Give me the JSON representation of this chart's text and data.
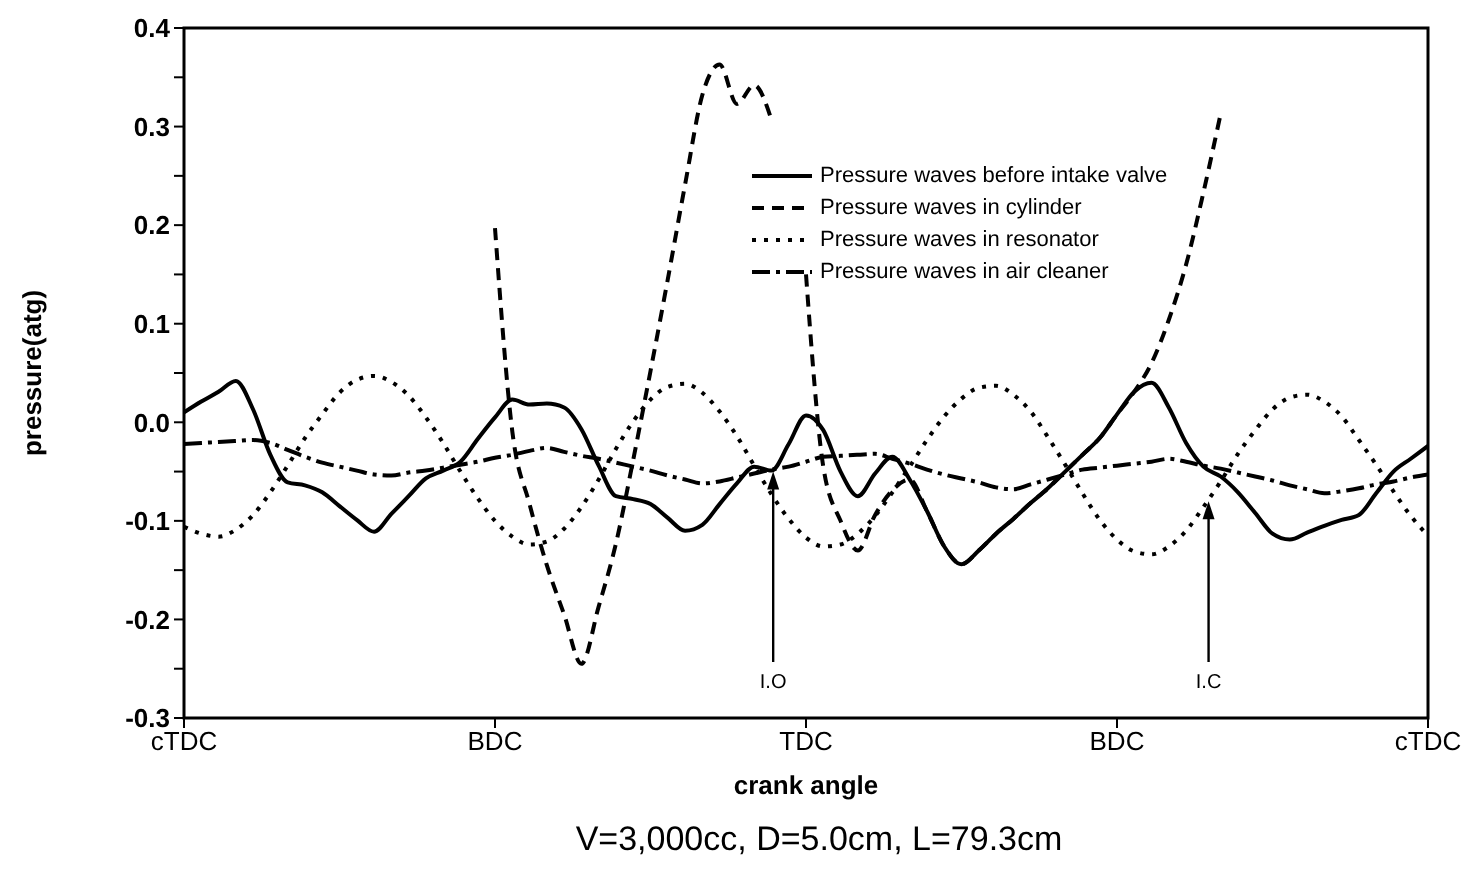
{
  "chart_data": {
    "type": "line",
    "xlabel": "crank angle",
    "ylabel": "pressure(atg)",
    "categories": [
      "cTDC",
      null,
      null,
      null,
      null,
      null,
      null,
      null,
      null,
      null,
      null,
      null,
      null,
      null,
      null,
      null,
      null,
      null,
      "BDC",
      null,
      null,
      null,
      null,
      null,
      null,
      null,
      null,
      null,
      null,
      null,
      null,
      null,
      null,
      null,
      null,
      null,
      "TDC",
      null,
      null,
      null,
      null,
      null,
      null,
      null,
      null,
      null,
      null,
      null,
      null,
      null,
      null,
      null,
      null,
      null,
      "BDC",
      null,
      null,
      null,
      null,
      null,
      null,
      null,
      null,
      null,
      null,
      null,
      null,
      null,
      null,
      null,
      null,
      null,
      "cTDC"
    ],
    "ylim": [
      -0.3,
      0.4
    ],
    "yticks": [
      -0.3,
      {
        "value": -0.25,
        "label": null
      },
      -0.2,
      {
        "value": -0.15,
        "label": null
      },
      -0.1,
      {
        "value": -0.05,
        "label": null
      },
      {
        "value": 0,
        "label": "0.0"
      },
      {
        "value": 0.05,
        "label": null
      },
      0.1,
      {
        "value": 0.15,
        "label": null
      },
      0.2,
      {
        "value": 0.25,
        "label": null
      },
      0.3,
      {
        "value": 0.35,
        "label": null
      },
      0.4
    ],
    "grid": false,
    "legend": "top right",
    "series": [
      {
        "name": "Pressure waves before intake valve",
        "color": "#000000",
        "line_style": "solid",
        "values": [
          0.01,
          0.021,
          0.031,
          0.042,
          0.013,
          -0.033,
          -0.061,
          -0.064,
          -0.071,
          -0.085,
          -0.099,
          -0.111,
          -0.093,
          -0.075,
          -0.057,
          -0.049,
          -0.04,
          -0.017,
          0.005,
          0.023,
          0.018,
          0.019,
          0.015,
          -0.007,
          -0.044,
          -0.075,
          -0.078,
          -0.083,
          -0.097,
          -0.11,
          -0.104,
          -0.083,
          -0.062,
          -0.045,
          -0.049,
          -0.022,
          0.007,
          -0.008,
          -0.05,
          -0.075,
          -0.052,
          -0.035,
          -0.058,
          -0.09,
          -0.126,
          -0.144,
          -0.13,
          -0.113,
          -0.098,
          -0.082,
          -0.067,
          -0.05,
          -0.033,
          -0.016,
          0.008,
          0.031,
          0.04,
          0.015,
          -0.021,
          -0.045,
          -0.055,
          -0.071,
          -0.092,
          -0.113,
          -0.119,
          -0.112,
          -0.105,
          -0.099,
          -0.094,
          -0.072,
          -0.05,
          -0.037,
          -0.024
        ]
      },
      {
        "name": "Pressure waves in cylinder",
        "color": "#000000",
        "line_style": "dashed",
        "values": [
          null,
          null,
          null,
          null,
          null,
          null,
          null,
          null,
          null,
          null,
          null,
          null,
          null,
          null,
          null,
          null,
          null,
          null,
          0.197,
          -0.009,
          -0.083,
          -0.145,
          -0.195,
          -0.245,
          -0.187,
          -0.123,
          -0.038,
          0.052,
          0.145,
          0.241,
          0.332,
          0.363,
          0.323,
          0.342,
          0.307,
          null,
          0.15,
          -0.045,
          -0.1,
          -0.13,
          -0.094,
          -0.069,
          -0.058,
          -0.09,
          -0.126,
          -0.144,
          -0.13,
          -0.113,
          -0.098,
          -0.082,
          -0.067,
          -0.05,
          -0.033,
          -0.016,
          0.008,
          0.031,
          0.06,
          0.104,
          0.16,
          0.233,
          0.313,
          null,
          null,
          null,
          null,
          null,
          null,
          null,
          null,
          null,
          null,
          null,
          null
        ]
      },
      {
        "name": "Pressure waves in resonator",
        "color": "#000000",
        "line_style": "dotted",
        "values": [
          -0.106,
          -0.113,
          -0.116,
          -0.109,
          -0.094,
          -0.071,
          -0.044,
          -0.016,
          0.008,
          0.03,
          0.043,
          0.047,
          0.041,
          0.027,
          0.005,
          -0.021,
          -0.05,
          -0.077,
          -0.1,
          -0.116,
          -0.124,
          -0.121,
          -0.108,
          -0.086,
          -0.058,
          -0.027,
          0.001,
          0.023,
          0.036,
          0.039,
          0.03,
          0.011,
          -0.014,
          -0.044,
          -0.073,
          -0.098,
          -0.117,
          -0.126,
          -0.124,
          -0.113,
          -0.095,
          -0.071,
          -0.045,
          -0.018,
          0.006,
          0.024,
          0.035,
          0.037,
          0.028,
          0.011,
          -0.015,
          -0.043,
          -0.072,
          -0.099,
          -0.119,
          -0.131,
          -0.134,
          -0.126,
          -0.11,
          -0.086,
          -0.06,
          -0.032,
          -0.008,
          0.013,
          0.025,
          0.028,
          0.021,
          0.006,
          -0.018,
          -0.043,
          -0.07,
          -0.095,
          -0.115
        ]
      },
      {
        "name": "Pressure waves in air cleaner",
        "color": "#000000",
        "line_style": "dashdot",
        "values": [
          -0.022,
          -0.021,
          -0.02,
          -0.019,
          -0.018,
          -0.021,
          -0.028,
          -0.035,
          -0.041,
          -0.045,
          -0.049,
          -0.053,
          -0.054,
          -0.051,
          -0.049,
          -0.046,
          -0.043,
          -0.04,
          -0.036,
          -0.033,
          -0.029,
          -0.026,
          -0.03,
          -0.034,
          -0.037,
          -0.041,
          -0.045,
          -0.049,
          -0.054,
          -0.058,
          -0.062,
          -0.06,
          -0.056,
          -0.052,
          -0.048,
          -0.045,
          -0.04,
          -0.035,
          -0.034,
          -0.033,
          -0.032,
          -0.037,
          -0.042,
          -0.048,
          -0.053,
          -0.057,
          -0.061,
          -0.066,
          -0.068,
          -0.063,
          -0.058,
          -0.053,
          -0.048,
          -0.046,
          -0.044,
          -0.042,
          -0.04,
          -0.037,
          -0.04,
          -0.044,
          -0.047,
          -0.051,
          -0.055,
          -0.059,
          -0.064,
          -0.068,
          -0.072,
          -0.07,
          -0.067,
          -0.063,
          -0.06,
          -0.056,
          -0.053
        ]
      }
    ],
    "annotations": [
      {
        "text": "I.O",
        "y": -0.05
      },
      {
        "text": "I.C",
        "y": -0.08
      },
      "V=3,000cc, D=5.0cm, L=79.3cm"
    ]
  }
}
